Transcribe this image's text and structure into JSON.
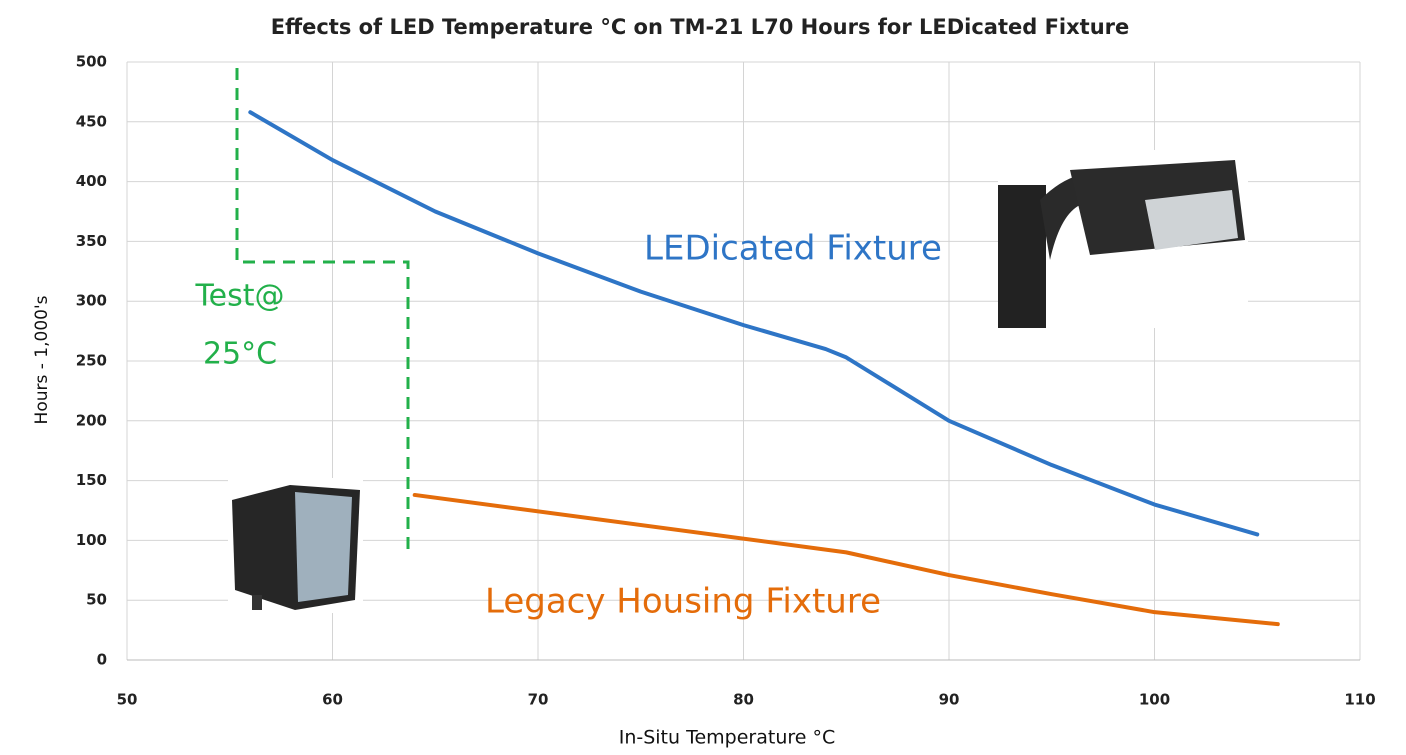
{
  "chart_data": {
    "type": "line",
    "title": "Effects of LED Temperature °C on TM-21 L70 Hours for LEDicated Fixture",
    "x_label": "In-Situ Temperature °C",
    "y_label": "Hours - 1,000's",
    "annotations": [
      "Test@",
      "25°C"
    ],
    "series": [
      {
        "name": "LEDicated Fixture",
        "color": "#2e75c6",
        "x": [
          56,
          60,
          65,
          70,
          75,
          80,
          84,
          85,
          90,
          95,
          100,
          105
        ],
        "values": [
          458,
          418,
          375,
          340,
          308,
          280,
          260,
          253,
          200,
          163,
          130,
          105
        ]
      },
      {
        "name": "Legacy Housing Fixture",
        "color": "#e46c0a",
        "x": [
          64,
          85,
          90,
          95,
          100,
          106
        ],
        "values": [
          138,
          90,
          71,
          55,
          40,
          30
        ]
      }
    ],
    "xlim": [
      50,
      110
    ],
    "xticks": [
      50,
      60,
      70,
      80,
      90,
      100,
      110
    ],
    "ylim": [
      0,
      500
    ],
    "yticks": [
      0,
      50,
      100,
      150,
      200,
      250,
      300,
      350,
      400,
      450,
      500
    ],
    "grid": true
  }
}
